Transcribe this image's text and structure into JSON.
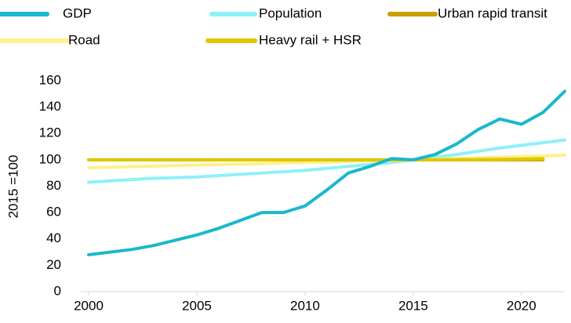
{
  "chart_data": {
    "type": "line",
    "y_label": "2015 =100",
    "x": [
      2000,
      2001,
      2002,
      2003,
      2004,
      2005,
      2006,
      2007,
      2008,
      2009,
      2010,
      2011,
      2012,
      2013,
      2014,
      2015,
      2016,
      2017,
      2018,
      2019,
      2020,
      2021,
      2022
    ],
    "series": [
      {
        "name": "GDP",
        "color": "#1ab8cc",
        "values": [
          28,
          30,
          32,
          35,
          39,
          43,
          48,
          54,
          60,
          60,
          65,
          77,
          90,
          95,
          101,
          100,
          104,
          112,
          123,
          131,
          127,
          136,
          152
        ]
      },
      {
        "name": "Population",
        "color": "#8ff0f8",
        "values": [
          83,
          84,
          85,
          86,
          86.5,
          87,
          88,
          89,
          90,
          91,
          92,
          93.5,
          95,
          96.5,
          98,
          100,
          102,
          104,
          106.5,
          109,
          111,
          113,
          115
        ]
      },
      {
        "name": "Urban rapid transit",
        "color": "#c8a000",
        "values": [
          100,
          100,
          100,
          100,
          100,
          100,
          100,
          100,
          100,
          100,
          100,
          100,
          100,
          100,
          100,
          100,
          100,
          100,
          100,
          100,
          100,
          100,
          null
        ]
      },
      {
        "name": "Road",
        "color": "#fff08a",
        "values": [
          94,
          94.4,
          94.8,
          95.2,
          95.6,
          96,
          96.4,
          96.8,
          97.2,
          97.6,
          98,
          98.4,
          98.8,
          99.2,
          99.6,
          100,
          100.5,
          101,
          101.5,
          102,
          102.5,
          103,
          103.5
        ]
      },
      {
        "name": "Heavy rail + HSR",
        "color": "#e0c800",
        "values": [
          100,
          100,
          100,
          100,
          100,
          100,
          100,
          100,
          100,
          100,
          100,
          100,
          100,
          100,
          100,
          100,
          100,
          100,
          100.2,
          100.4,
          100.6,
          101,
          null
        ]
      }
    ],
    "xlim": [
      2000,
      2022
    ],
    "xticks": [
      2000,
      2005,
      2010,
      2015,
      2020
    ],
    "ylim": [
      0,
      160
    ],
    "yticks": [
      0,
      20,
      40,
      60,
      80,
      100,
      120,
      140,
      160
    ],
    "legend": "top"
  }
}
